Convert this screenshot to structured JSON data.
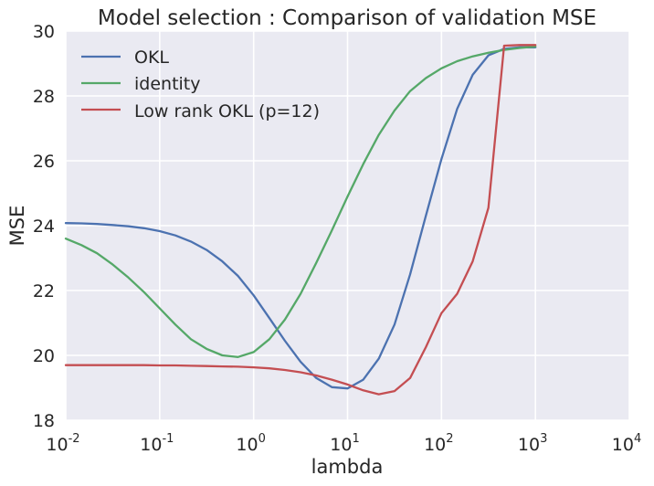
{
  "chart_data": {
    "type": "line",
    "title": "Model selection : Comparison of validation MSE",
    "xlabel": "lambda",
    "ylabel": "MSE",
    "x_scale": "log",
    "xlim": [
      0.01,
      10000
    ],
    "ylim": [
      18,
      30
    ],
    "x_ticks": [
      {
        "value": 0.01,
        "base": "10",
        "exp": "-2"
      },
      {
        "value": 0.1,
        "base": "10",
        "exp": "-1"
      },
      {
        "value": 1,
        "base": "10",
        "exp": "0"
      },
      {
        "value": 10,
        "base": "10",
        "exp": "1"
      },
      {
        "value": 100,
        "base": "10",
        "exp": "2"
      },
      {
        "value": 1000,
        "base": "10",
        "exp": "3"
      },
      {
        "value": 10000,
        "base": "10",
        "exp": "4"
      }
    ],
    "y_ticks": [
      18,
      20,
      22,
      24,
      26,
      28,
      30
    ],
    "grid": true,
    "legend_position": "top-left",
    "x": [
      0.01,
      0.0147,
      0.0215,
      0.0316,
      0.0464,
      0.0681,
      0.1,
      0.147,
      0.215,
      0.316,
      0.464,
      0.681,
      1,
      1.47,
      2.15,
      3.16,
      4.64,
      6.81,
      10,
      14.7,
      21.5,
      31.6,
      46.4,
      68.1,
      100,
      147,
      215,
      316,
      464,
      681,
      1000
    ],
    "series": [
      {
        "name": "OKL",
        "color": "#4c72b0",
        "values": [
          24.08,
          24.07,
          24.05,
          24.02,
          23.98,
          23.92,
          23.83,
          23.7,
          23.51,
          23.25,
          22.9,
          22.45,
          21.85,
          21.15,
          20.45,
          19.8,
          19.3,
          19.02,
          18.98,
          19.25,
          19.9,
          20.95,
          22.5,
          24.3,
          26.05,
          27.6,
          28.65,
          29.25,
          29.45,
          29.5,
          29.5
        ]
      },
      {
        "name": "identity",
        "color": "#55a868",
        "values": [
          23.6,
          23.4,
          23.15,
          22.8,
          22.4,
          21.95,
          21.45,
          20.95,
          20.5,
          20.2,
          20.0,
          19.95,
          20.1,
          20.5,
          21.1,
          21.9,
          22.85,
          23.85,
          24.9,
          25.9,
          26.8,
          27.55,
          28.15,
          28.55,
          28.85,
          29.07,
          29.22,
          29.33,
          29.42,
          29.48,
          29.52
        ]
      },
      {
        "name": "Low rank OKL (p=12)",
        "color": "#c44e52",
        "values": [
          19.7,
          19.7,
          19.7,
          19.7,
          19.7,
          19.7,
          19.69,
          19.69,
          19.68,
          19.67,
          19.66,
          19.65,
          19.63,
          19.6,
          19.55,
          19.48,
          19.38,
          19.25,
          19.1,
          18.92,
          18.8,
          18.9,
          19.3,
          20.25,
          21.3,
          21.9,
          22.9,
          24.55,
          29.55,
          29.57,
          29.57
        ]
      }
    ]
  }
}
